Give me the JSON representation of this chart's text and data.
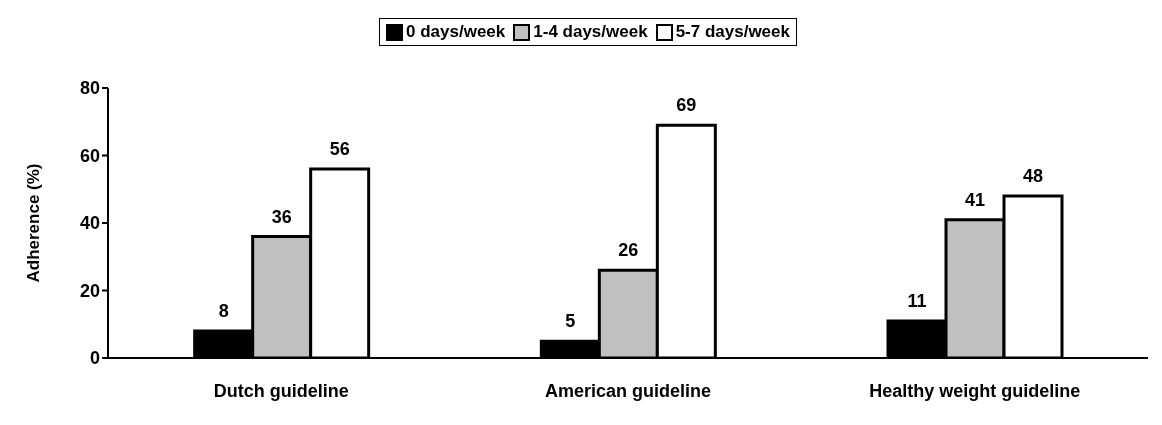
{
  "chart_data": {
    "type": "bar",
    "ylabel": "Adherence (%)",
    "categories": [
      "Dutch guideline",
      "American guideline",
      "Healthy weight guideline"
    ],
    "series": [
      {
        "name": "0 days/week",
        "color": "#000000",
        "values": [
          8,
          5,
          11
        ]
      },
      {
        "name": "1-4 days/week",
        "color": "#c0c0c0",
        "values": [
          36,
          26,
          41
        ]
      },
      {
        "name": "5-7 days/week",
        "color": "#ffffff",
        "values": [
          56,
          69,
          48
        ]
      }
    ],
    "ylim": [
      0,
      80
    ],
    "yticks": [
      0,
      20,
      40,
      60,
      80
    ],
    "grid": false,
    "legend": "top",
    "data_labels": true
  }
}
